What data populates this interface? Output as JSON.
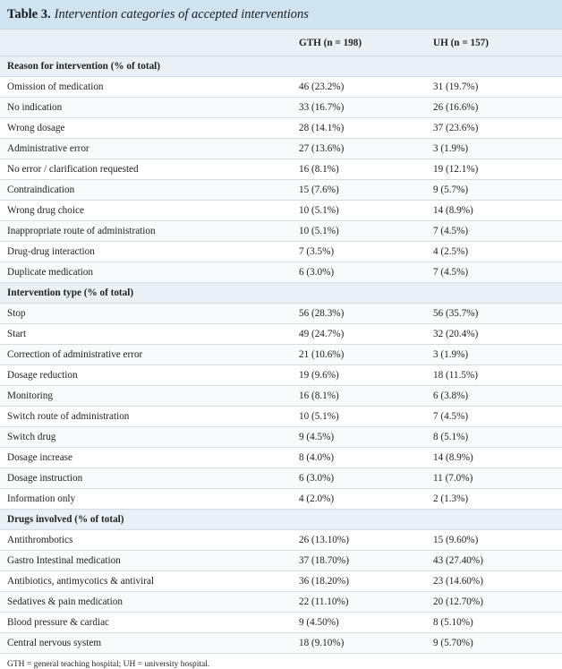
{
  "caption": {
    "label": "Table 3.",
    "title": "Intervention categories of accepted interventions"
  },
  "columns": [
    "",
    "GTH (n = 198)",
    "UH (n = 157)"
  ],
  "sections": [
    {
      "title": "Reason for intervention (% of total)",
      "rows": [
        [
          "Omission of medication",
          "46 (23.2%)",
          "31 (19.7%)"
        ],
        [
          "No indication",
          "33 (16.7%)",
          "26 (16.6%)"
        ],
        [
          "Wrong dosage",
          "28 (14.1%)",
          "37 (23.6%)"
        ],
        [
          "Administrative error",
          "27 (13.6%)",
          "3 (1.9%)"
        ],
        [
          "No error / clarification requested",
          "16 (8.1%)",
          "19 (12.1%)"
        ],
        [
          "Contraindication",
          "15 (7.6%)",
          "9 (5.7%)"
        ],
        [
          "Wrong drug choice",
          "10 (5.1%)",
          "14 (8.9%)"
        ],
        [
          "Inappropriate route of administration",
          "10 (5.1%)",
          "7 (4.5%)"
        ],
        [
          "Drug-drug interaction",
          "7 (3.5%)",
          "4 (2.5%)"
        ],
        [
          "Duplicate medication",
          "6 (3.0%)",
          "7 (4.5%)"
        ]
      ]
    },
    {
      "title": "Intervention type (% of total)",
      "rows": [
        [
          "Stop",
          "56 (28.3%)",
          "56 (35.7%)"
        ],
        [
          "Start",
          "49 (24.7%)",
          "32 (20.4%)"
        ],
        [
          "Correction of administrative error",
          "21 (10.6%)",
          "3 (1.9%)"
        ],
        [
          "Dosage reduction",
          "19 (9.6%)",
          "18 (11.5%)"
        ],
        [
          "Monitoring",
          "16 (8.1%)",
          "6 (3.8%)"
        ],
        [
          "Switch route of administration",
          "10 (5.1%)",
          "7 (4.5%)"
        ],
        [
          "Switch drug",
          "9 (4.5%)",
          "8 (5.1%)"
        ],
        [
          "Dosage increase",
          "8 (4.0%)",
          "14 (8.9%)"
        ],
        [
          "Dosage instruction",
          "6 (3.0%)",
          "11 (7.0%)"
        ],
        [
          "Information only",
          "4 (2.0%)",
          "2 (1.3%)"
        ]
      ]
    },
    {
      "title": "Drugs involved (% of total)",
      "rows": [
        [
          "Antithrombotics",
          "26 (13.10%)",
          "15 (9.60%)"
        ],
        [
          "Gastro Intestinal medication",
          "37 (18.70%)",
          "43 (27.40%)"
        ],
        [
          "Antibiotics, antimycotics & antiviral",
          "36 (18.20%)",
          "23 (14.60%)"
        ],
        [
          "Sedatives & pain medication",
          "22 (11.10%)",
          "20 (12.70%)"
        ],
        [
          "Blood pressure & cardiac",
          "9 (4.50%)",
          "8 (5.10%)"
        ],
        [
          "Central nervous system",
          "18 (9.10%)",
          "9 (5.70%)"
        ]
      ]
    }
  ],
  "footnote": "GTH = general teaching hospital; UH = university hospital."
}
